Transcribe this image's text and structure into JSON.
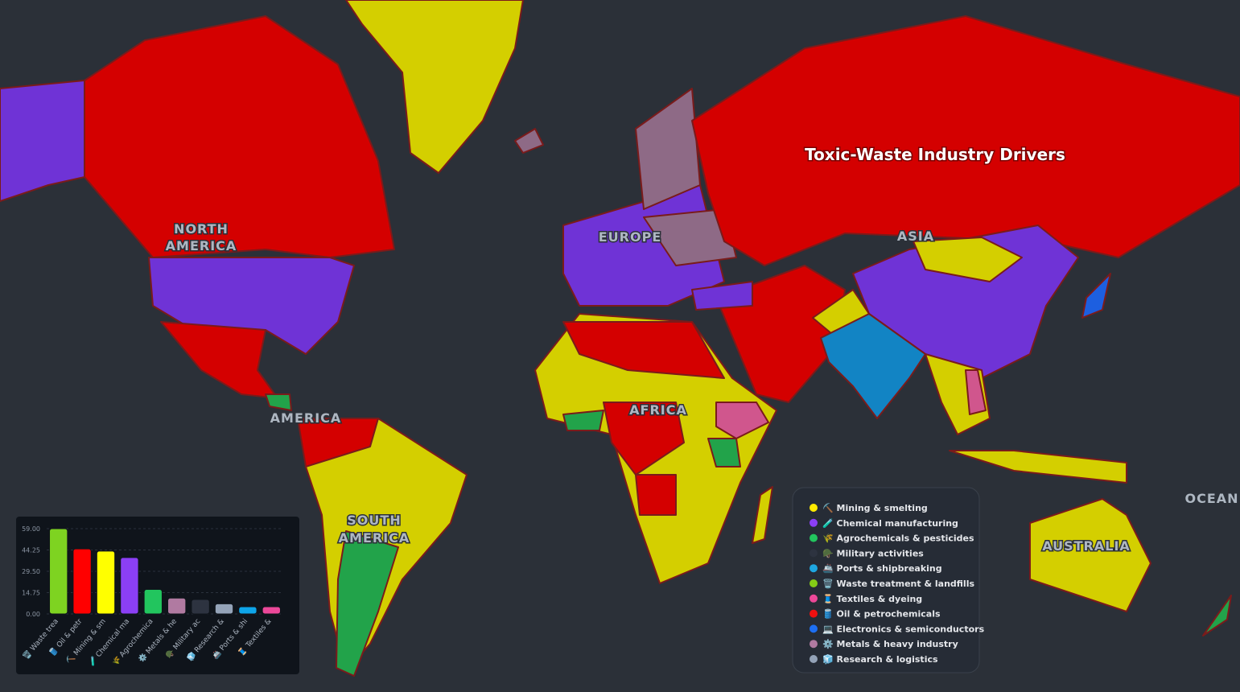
{
  "title": "Toxic-Waste Industry Drivers",
  "map_labels": [
    "NORTH",
    "AMERICA",
    "EUROPE",
    "ASIA",
    "AFRICA",
    "AMERICA",
    "SOUTH",
    "AMERICA",
    "AUSTRALIA",
    "OCEAN"
  ],
  "legend": [
    {
      "label": "⛏️ Mining & smelting",
      "color": "#ffea00"
    },
    {
      "label": "🧪 Chemical manufacturing",
      "color": "#8b3ff5"
    },
    {
      "label": "🌾 Agrochemicals & pesticides",
      "color": "#22c55e"
    },
    {
      "label": "🪖 Military activities",
      "color": "#2d3340"
    },
    {
      "label": "🚢 Ports & shipbreaking",
      "color": "#1ea7e1"
    },
    {
      "label": "🗑️ Waste treatment & landfills",
      "color": "#84cc16"
    },
    {
      "label": "🧵 Textiles & dyeing",
      "color": "#ec4899"
    },
    {
      "label": "🛢️ Oil & petrochemicals",
      "color": "#ef1010"
    },
    {
      "label": "💻 Electronics & semiconductors",
      "color": "#1d6ff2"
    },
    {
      "label": "⚙️ Metals & heavy industry",
      "color": "#b07aa1"
    },
    {
      "label": "🧊 Research & logistics",
      "color": "#94a3b8"
    }
  ],
  "chart_data": {
    "type": "bar",
    "categories": [
      "🗑️ Waste trea",
      "🛢️ Oil & petr",
      "⛏️ Mining & sm",
      "🧪 Chemical ma",
      "🌾 Agrochemica",
      "⚙️ Metals & he",
      "🪖 Military ac",
      "🧊 Research &",
      "🚢 Ports & shi",
      "🧵 Textiles &"
    ],
    "values": [
      59,
      45,
      43.5,
      39,
      17,
      11,
      10,
      7,
      5,
      5
    ],
    "colors": [
      "#7ed321",
      "#ff0000",
      "#ffff00",
      "#8b3ff5",
      "#22c55e",
      "#b07aa1",
      "#2d3340",
      "#94a3b8",
      "#0ea5e9",
      "#ec4899"
    ],
    "ylim": [
      0,
      59
    ],
    "yticks": [
      {
        "value": 0,
        "label": "0.00"
      },
      {
        "value": 14.75,
        "label": "14.75"
      },
      {
        "value": 29.5,
        "label": "29.50"
      },
      {
        "value": 44.25,
        "label": "44.25"
      },
      {
        "value": 59,
        "label": "59.00"
      }
    ],
    "grid": true
  }
}
